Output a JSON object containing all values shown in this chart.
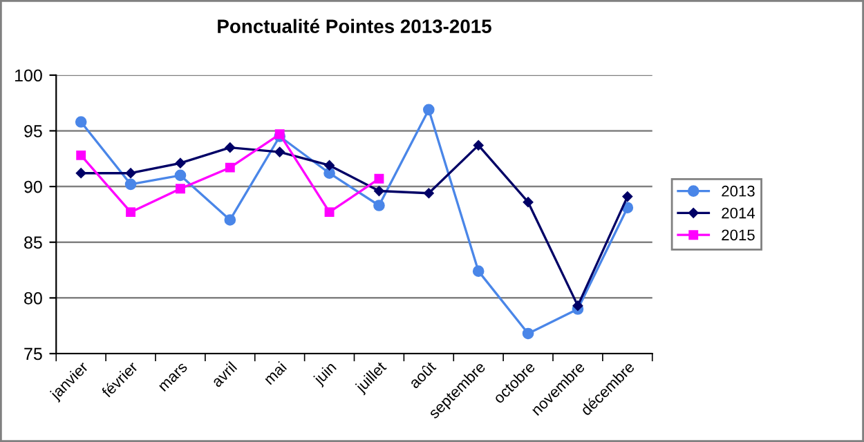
{
  "chart_data": {
    "type": "line",
    "title": "Ponctualité Pointes 2013-2015",
    "categories": [
      "janvier",
      "février",
      "mars",
      "avril",
      "mai",
      "juin",
      "juillet",
      "août",
      "septembre",
      "octobre",
      "novembre",
      "décembre"
    ],
    "series": [
      {
        "name": "2013",
        "color": "#4a86e8",
        "marker": "circle",
        "values": [
          95.8,
          90.2,
          91.0,
          87.0,
          94.5,
          91.2,
          88.3,
          96.9,
          82.4,
          76.8,
          79.0,
          88.1
        ]
      },
      {
        "name": "2014",
        "color": "#000066",
        "marker": "diamond",
        "values": [
          91.2,
          91.2,
          92.1,
          93.5,
          93.1,
          91.9,
          89.6,
          89.4,
          93.7,
          88.6,
          79.3,
          89.1
        ]
      },
      {
        "name": "2015",
        "color": "#ff00ff",
        "marker": "square",
        "values": [
          92.8,
          87.7,
          89.8,
          91.7,
          94.7,
          87.7,
          90.7,
          null,
          null,
          null,
          null,
          null
        ]
      }
    ],
    "ylim": [
      75,
      100
    ],
    "yticks": [
      75,
      80,
      85,
      90,
      95,
      100
    ],
    "grid": "y",
    "legend": "right",
    "line_style": "solid"
  }
}
